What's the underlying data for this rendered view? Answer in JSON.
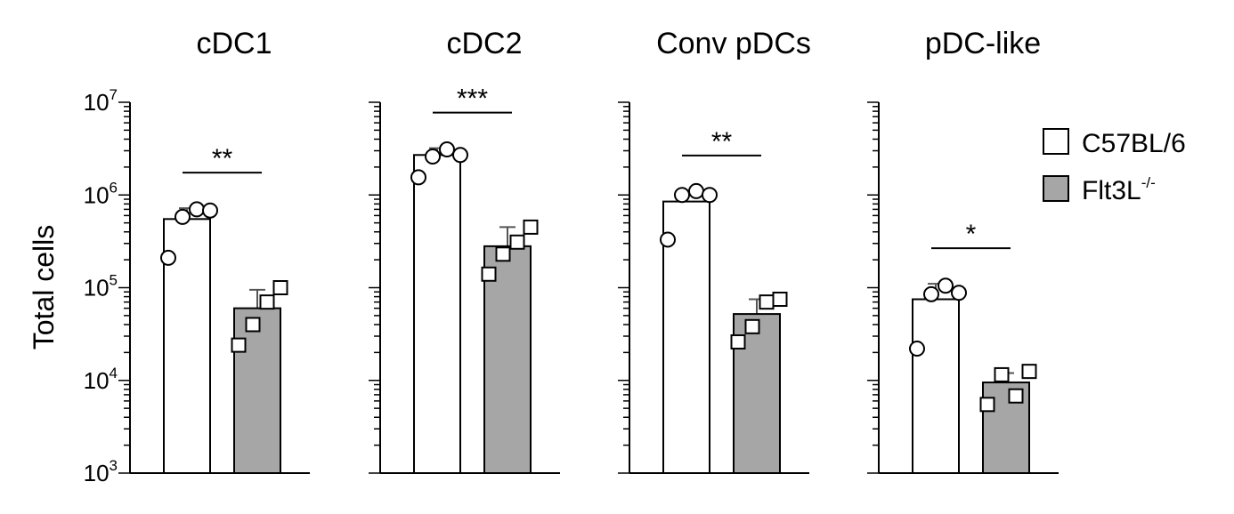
{
  "chart_data": {
    "type": "bar",
    "ylabel": "Total cells",
    "yscale": "log",
    "ylim": [
      1000,
      10000000
    ],
    "yticks": [
      {
        "value": 1000,
        "base": "10",
        "exp": "3"
      },
      {
        "value": 10000,
        "base": "10",
        "exp": "4"
      },
      {
        "value": 100000,
        "base": "10",
        "exp": "5"
      },
      {
        "value": 1000000,
        "base": "10",
        "exp": "6"
      },
      {
        "value": 10000000,
        "base": "10",
        "exp": "7"
      }
    ],
    "legend": {
      "position": "top-right",
      "entries": [
        {
          "label": "C57BL/6",
          "sup": "",
          "color": "#ffffff",
          "marker": "circle"
        },
        {
          "label": "Flt3L",
          "sup": "-/-",
          "color": "#a6a6a6",
          "marker": "square"
        }
      ]
    },
    "panels": [
      {
        "title": "cDC1",
        "significance": "**",
        "series": [
          {
            "mean": 550000,
            "error": 720000,
            "points": [
              210000,
              580000,
              700000,
              680000
            ]
          },
          {
            "mean": 60000,
            "error": 95000,
            "points": [
              24000,
              40000,
              70000,
              100000
            ]
          }
        ]
      },
      {
        "title": "cDC2",
        "significance": "***",
        "series": [
          {
            "mean": 2700000,
            "error": 3200000,
            "points": [
              1550000,
              2600000,
              3100000,
              2700000
            ]
          },
          {
            "mean": 280000,
            "error": 450000,
            "points": [
              140000,
              230000,
              310000,
              450000
            ]
          }
        ]
      },
      {
        "title": "Conv pDCs",
        "significance": "**",
        "series": [
          {
            "mean": 850000,
            "error": 1100000,
            "points": [
              330000,
              1000000,
              1100000,
              1000000
            ]
          },
          {
            "mean": 52000,
            "error": 75000,
            "points": [
              26000,
              38000,
              70000,
              75000
            ]
          }
        ]
      },
      {
        "title": "pDC-like",
        "significance": "*",
        "series": [
          {
            "mean": 75000,
            "error": 110000,
            "points": [
              22000,
              85000,
              105000,
              88000
            ]
          },
          {
            "mean": 9500,
            "error": 12000,
            "points": [
              5500,
              11500,
              6800,
              12500
            ]
          }
        ]
      }
    ]
  }
}
